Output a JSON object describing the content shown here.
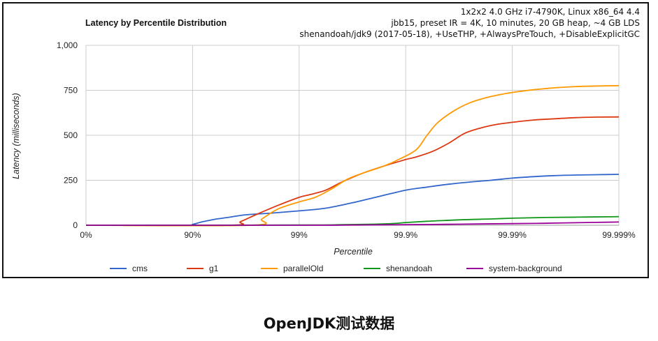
{
  "chart_data": {
    "type": "line",
    "title": "Latency by Percentile Distribution",
    "subtitle_lines": [
      "1x2x2 4.0 GHz i7-4790K, Linux x86_64 4.4",
      "jbb15, preset IR = 4K, 10 minutes, 20 GB heap, ~4 GB LDS",
      "shenandoah/jdk9 (2017-05-18), +UseTHP, +AlwaysPreTouch, +DisableExplicitGC"
    ],
    "xlabel": "Percentile",
    "ylabel": "Latency (milliseconds)",
    "x_scale": "percentile (log of 1/(1-p))",
    "x_ticks": [
      "0%",
      "90%",
      "99%",
      "99.9%",
      "99.99%",
      "99.999%"
    ],
    "xlim": [
      0,
      5
    ],
    "y_ticks": [
      "0",
      "250",
      "500",
      "750",
      "1,000"
    ],
    "ylim": [
      0,
      1000
    ],
    "grid": true,
    "legend_position": "bottom",
    "series": [
      {
        "name": "cms",
        "color": "#3366cc",
        "points": [
          [
            0,
            0
          ],
          [
            0.95,
            0
          ],
          [
            1.0,
            5
          ],
          [
            1.1,
            20
          ],
          [
            1.2,
            32
          ],
          [
            1.35,
            45
          ],
          [
            1.5,
            58
          ],
          [
            1.75,
            68
          ],
          [
            2.0,
            80
          ],
          [
            2.25,
            95
          ],
          [
            2.5,
            125
          ],
          [
            2.75,
            160
          ],
          [
            3.0,
            195
          ],
          [
            3.2,
            212
          ],
          [
            3.4,
            228
          ],
          [
            3.6,
            240
          ],
          [
            3.8,
            250
          ],
          [
            4.0,
            262
          ],
          [
            4.2,
            270
          ],
          [
            4.4,
            276
          ],
          [
            4.6,
            279
          ],
          [
            4.8,
            281
          ],
          [
            5.0,
            283
          ]
        ]
      },
      {
        "name": "g1",
        "color": "#dc3912",
        "points": [
          [
            0,
            0
          ],
          [
            1.35,
            0
          ],
          [
            1.45,
            20
          ],
          [
            1.6,
            60
          ],
          [
            1.8,
            110
          ],
          [
            2.0,
            155
          ],
          [
            2.1,
            170
          ],
          [
            2.25,
            195
          ],
          [
            2.4,
            240
          ],
          [
            2.6,
            290
          ],
          [
            2.8,
            330
          ],
          [
            3.0,
            365
          ],
          [
            3.1,
            380
          ],
          [
            3.25,
            410
          ],
          [
            3.4,
            455
          ],
          [
            3.55,
            510
          ],
          [
            3.7,
            540
          ],
          [
            3.85,
            560
          ],
          [
            4.0,
            572
          ],
          [
            4.2,
            585
          ],
          [
            4.4,
            592
          ],
          [
            4.6,
            598
          ],
          [
            4.8,
            601
          ],
          [
            5.0,
            602
          ]
        ]
      },
      {
        "name": "parallelOld",
        "color": "#ff9900",
        "points": [
          [
            0,
            0
          ],
          [
            1.55,
            0
          ],
          [
            1.65,
            35
          ],
          [
            1.8,
            90
          ],
          [
            2.0,
            130
          ],
          [
            2.15,
            155
          ],
          [
            2.3,
            200
          ],
          [
            2.45,
            255
          ],
          [
            2.6,
            290
          ],
          [
            2.8,
            330
          ],
          [
            2.95,
            370
          ],
          [
            3.1,
            420
          ],
          [
            3.2,
            500
          ],
          [
            3.3,
            570
          ],
          [
            3.45,
            635
          ],
          [
            3.6,
            680
          ],
          [
            3.75,
            708
          ],
          [
            3.9,
            728
          ],
          [
            4.0,
            738
          ],
          [
            4.2,
            753
          ],
          [
            4.4,
            764
          ],
          [
            4.6,
            771
          ],
          [
            4.8,
            774
          ],
          [
            5.0,
            776
          ]
        ]
      },
      {
        "name": "shenandoah",
        "color": "#109618",
        "points": [
          [
            0,
            0
          ],
          [
            2.0,
            1
          ],
          [
            2.4,
            3
          ],
          [
            2.7,
            6
          ],
          [
            2.9,
            10
          ],
          [
            3.0,
            15
          ],
          [
            3.2,
            22
          ],
          [
            3.5,
            30
          ],
          [
            3.8,
            35
          ],
          [
            4.0,
            39
          ],
          [
            4.3,
            43
          ],
          [
            4.6,
            45
          ],
          [
            4.9,
            47
          ],
          [
            5.0,
            48
          ]
        ]
      },
      {
        "name": "system-background",
        "color": "#990099",
        "points": [
          [
            0,
            0
          ],
          [
            2.0,
            0
          ],
          [
            2.5,
            1
          ],
          [
            3.0,
            3
          ],
          [
            3.5,
            6
          ],
          [
            4.0,
            9
          ],
          [
            4.3,
            11
          ],
          [
            4.6,
            14
          ],
          [
            4.8,
            16
          ],
          [
            5.0,
            18
          ]
        ]
      }
    ]
  },
  "caption": "OpenJDK测试数据",
  "colors": {
    "grid": "#cccccc",
    "frame_border": "#111111",
    "axis_text": "#222222"
  }
}
